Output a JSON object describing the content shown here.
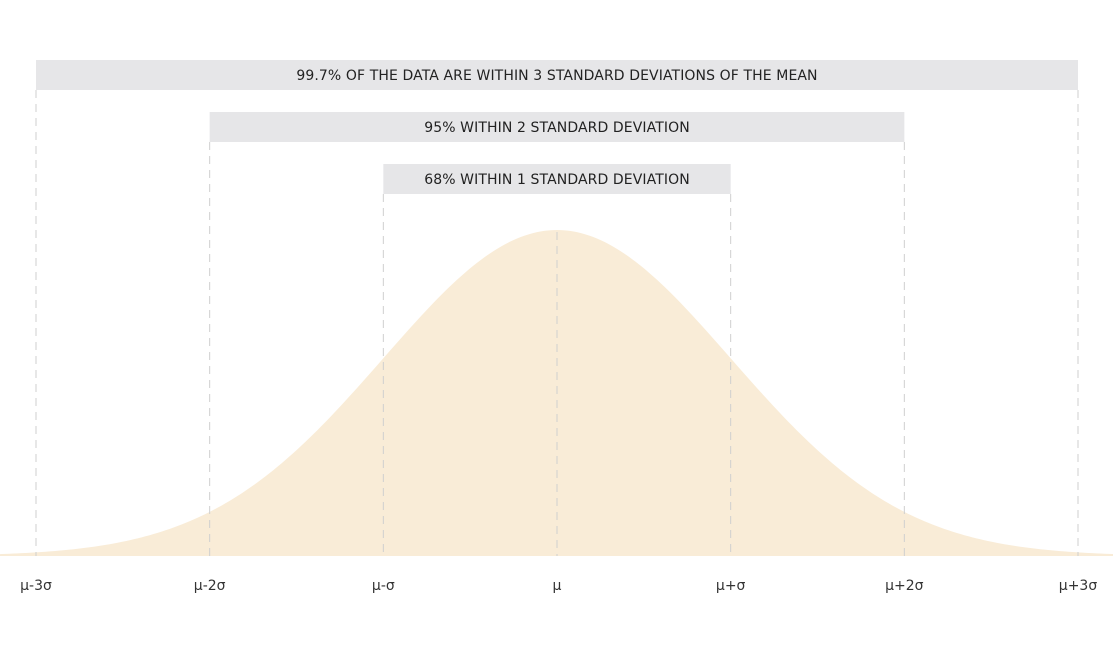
{
  "chart_data": {
    "type": "area",
    "title": "",
    "xlabel": "",
    "ylabel": "",
    "distribution": "normal",
    "x_ticks": [
      -3,
      -2,
      -1,
      0,
      1,
      2,
      3
    ],
    "x_tick_labels": [
      "μ-3σ",
      "μ-2σ",
      "μ-σ",
      "μ",
      "μ+σ",
      "μ+2σ",
      "μ+3σ"
    ],
    "xlim": [
      -3.1,
      3.1
    ],
    "grid": false,
    "bands": [
      {
        "range": [
          -3,
          3
        ],
        "label": "99.7% OF THE DATA ARE WITHIN 3 STANDARD DEVIATIONS OF THE MEAN"
      },
      {
        "range": [
          -2,
          2
        ],
        "label": "95% WITHIN 2 STANDARD DEVIATION"
      },
      {
        "range": [
          -1,
          1
        ],
        "label": "68% WITHIN 1 STANDARD DEVIATION"
      }
    ],
    "colors": {
      "curve_fill": "#f9ecd7",
      "band_fill": "#e6e6e8",
      "guide_line": "#cfcfcf",
      "label_text": "#222222"
    }
  }
}
